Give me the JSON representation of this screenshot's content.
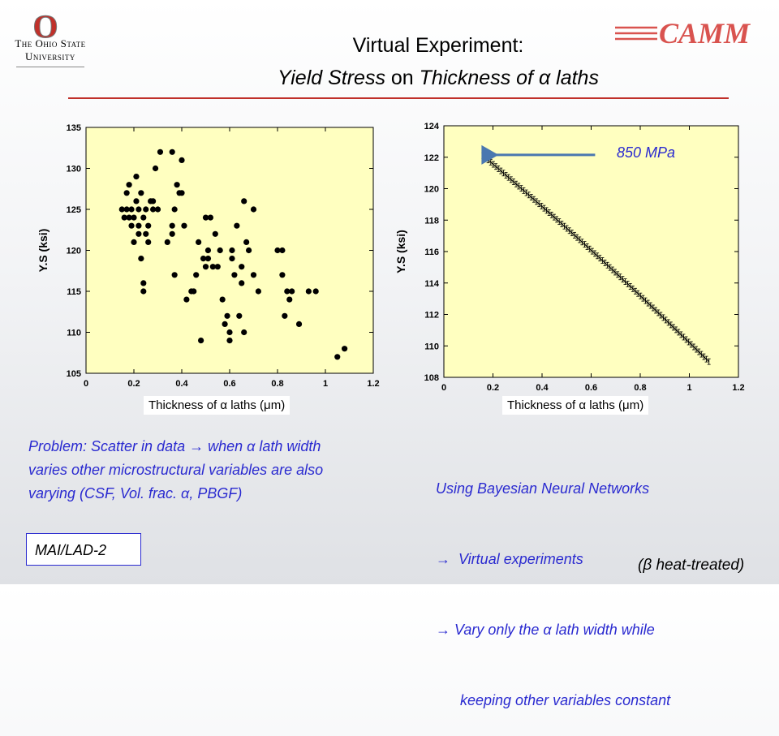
{
  "header": {
    "university_line1": "The Ohio State",
    "university_line2": "University",
    "logo_letter": "O",
    "brand": "CAMM",
    "title_line1": "Virtual Experiment:",
    "title_line2_parts": [
      "Yield Stress",
      " on ",
      "Thickness of ",
      "α",
      " laths"
    ]
  },
  "colors": {
    "accent_red": "#c0302a",
    "brand_red": "#d9534f",
    "note_blue": "#2a2ad0",
    "plot_bg": "#ffffc0"
  },
  "chart_data": [
    {
      "type": "scatter",
      "xlabel": "Thickness of α laths (μm)",
      "ylabel": "Y.S (ksi)",
      "xlim": [
        0,
        1.2
      ],
      "ylim": [
        105,
        135
      ],
      "xticks": [
        "0",
        "0.2",
        "0.4",
        "0.6",
        "0.8",
        "1",
        "1.2"
      ],
      "yticks": [
        "105",
        "110",
        "115",
        "120",
        "125",
        "130",
        "135"
      ],
      "points": [
        [
          0.15,
          125
        ],
        [
          0.16,
          124
        ],
        [
          0.17,
          127
        ],
        [
          0.17,
          125
        ],
        [
          0.18,
          128
        ],
        [
          0.18,
          124
        ],
        [
          0.19,
          125
        ],
        [
          0.19,
          123
        ],
        [
          0.2,
          121
        ],
        [
          0.2,
          124
        ],
        [
          0.21,
          126
        ],
        [
          0.21,
          129
        ],
        [
          0.22,
          122
        ],
        [
          0.22,
          125
        ],
        [
          0.22,
          123
        ],
        [
          0.23,
          119
        ],
        [
          0.23,
          127
        ],
        [
          0.24,
          124
        ],
        [
          0.24,
          116
        ],
        [
          0.24,
          115
        ],
        [
          0.25,
          125
        ],
        [
          0.25,
          122
        ],
        [
          0.26,
          121
        ],
        [
          0.26,
          123
        ],
        [
          0.27,
          126
        ],
        [
          0.28,
          125
        ],
        [
          0.28,
          126
        ],
        [
          0.29,
          130
        ],
        [
          0.3,
          125
        ],
        [
          0.31,
          132
        ],
        [
          0.34,
          121
        ],
        [
          0.36,
          132
        ],
        [
          0.36,
          122
        ],
        [
          0.36,
          123
        ],
        [
          0.37,
          117
        ],
        [
          0.37,
          125
        ],
        [
          0.38,
          128
        ],
        [
          0.39,
          127
        ],
        [
          0.4,
          127
        ],
        [
          0.4,
          131
        ],
        [
          0.41,
          123
        ],
        [
          0.42,
          114
        ],
        [
          0.44,
          115
        ],
        [
          0.45,
          115
        ],
        [
          0.46,
          117
        ],
        [
          0.47,
          121
        ],
        [
          0.48,
          109
        ],
        [
          0.49,
          119
        ],
        [
          0.5,
          124
        ],
        [
          0.5,
          118
        ],
        [
          0.51,
          120
        ],
        [
          0.51,
          119
        ],
        [
          0.52,
          124
        ],
        [
          0.53,
          118
        ],
        [
          0.54,
          122
        ],
        [
          0.55,
          118
        ],
        [
          0.56,
          120
        ],
        [
          0.57,
          114
        ],
        [
          0.58,
          111
        ],
        [
          0.59,
          112
        ],
        [
          0.6,
          109
        ],
        [
          0.6,
          110
        ],
        [
          0.61,
          119
        ],
        [
          0.61,
          120
        ],
        [
          0.62,
          117
        ],
        [
          0.63,
          123
        ],
        [
          0.64,
          112
        ],
        [
          0.65,
          118
        ],
        [
          0.65,
          116
        ],
        [
          0.66,
          110
        ],
        [
          0.66,
          126
        ],
        [
          0.67,
          121
        ],
        [
          0.68,
          120
        ],
        [
          0.7,
          117
        ],
        [
          0.7,
          125
        ],
        [
          0.72,
          115
        ],
        [
          0.8,
          120
        ],
        [
          0.82,
          120
        ],
        [
          0.82,
          117
        ],
        [
          0.83,
          112
        ],
        [
          0.84,
          115
        ],
        [
          0.85,
          114
        ],
        [
          0.86,
          115
        ],
        [
          0.89,
          111
        ],
        [
          0.93,
          115
        ],
        [
          0.96,
          115
        ],
        [
          1.05,
          107
        ],
        [
          1.08,
          108
        ]
      ]
    },
    {
      "type": "line",
      "xlabel": "Thickness of α laths (μm)",
      "ylabel": "Y.S (ksi)",
      "xlim": [
        0,
        1.2
      ],
      "ylim": [
        108,
        124
      ],
      "xticks": [
        "0",
        "0.2",
        "0.4",
        "0.6",
        "0.8",
        "1",
        "1.2"
      ],
      "yticks": [
        "108",
        "110",
        "112",
        "114",
        "116",
        "118",
        "120",
        "122",
        "124"
      ],
      "series": [
        {
          "x_start": 0.16,
          "x_end": 1.08,
          "y_start": 122.1,
          "y_end": 109.0,
          "points": 90,
          "error_bars": true
        }
      ],
      "annotation": {
        "text": "850 MPa",
        "arrow_target": [
          0.16,
          122.1
        ]
      }
    }
  ],
  "notes": {
    "left": [
      "Problem: Scatter in data → when α lath width",
      "varies other microstructural variables are also",
      "varying (CSF, Vol. frac.  α, PBGF)"
    ],
    "right": [
      "Using Bayesian Neural Networks",
      "→  Virtual experiments",
      "→ Vary only the α lath width while",
      "      keeping other variables constant"
    ],
    "box": "MAI/LAD-2",
    "footer": "(β heat-treated)"
  }
}
